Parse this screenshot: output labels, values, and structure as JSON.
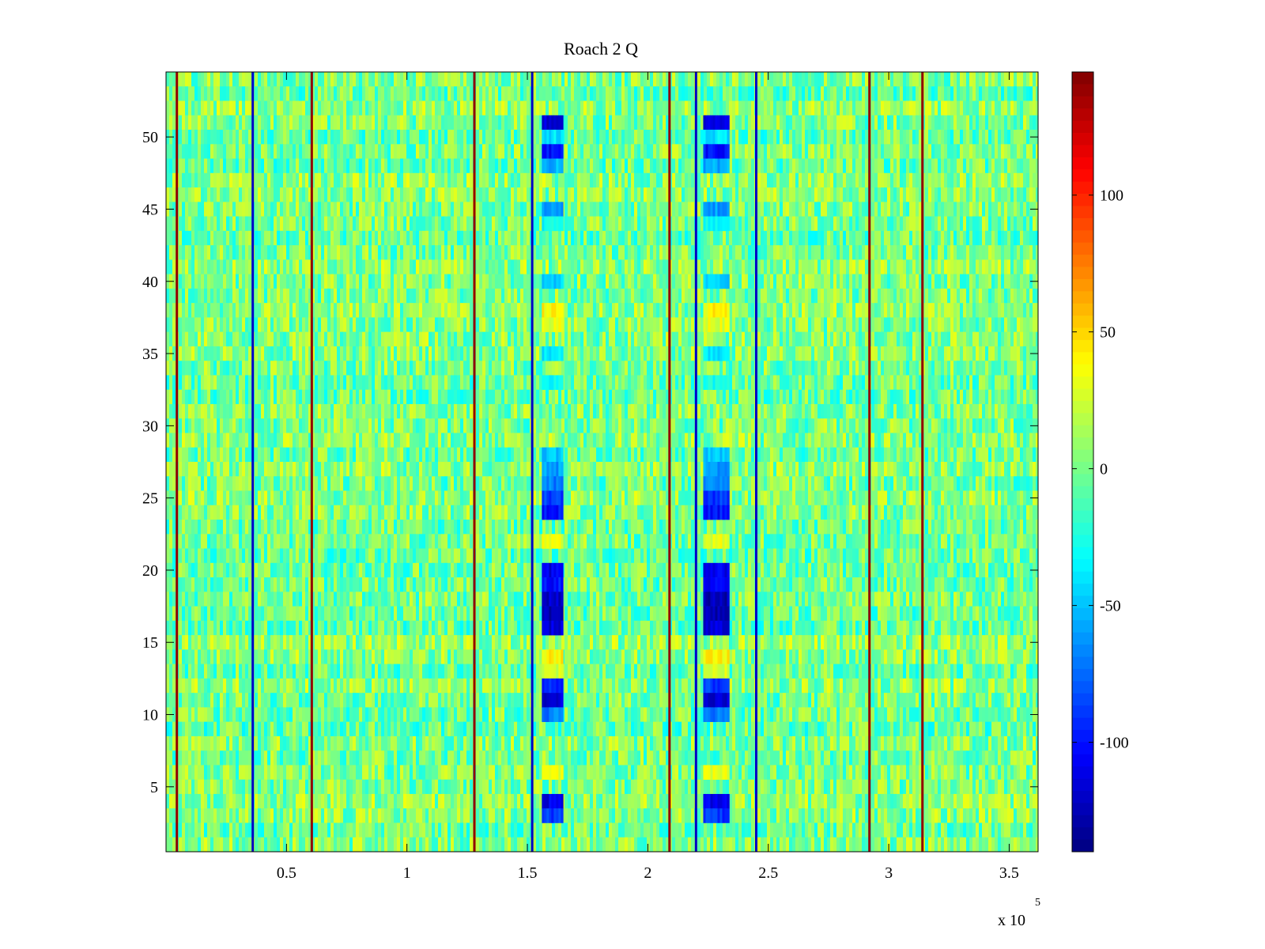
{
  "chart_data": {
    "type": "heatmap",
    "title": "Roach 2 Q",
    "xlabel": "",
    "ylabel": "",
    "x_multiplier_label": {
      "base": "x 10",
      "exponent": "5"
    },
    "xlim": [
      0.0,
      3.62
    ],
    "ylim": [
      0.5,
      54.5
    ],
    "x_ticks": [
      0.5,
      1,
      1.5,
      2,
      2.5,
      3,
      3.5
    ],
    "x_tick_labels": [
      "0.5",
      "1",
      "1.5",
      "2",
      "2.5",
      "3",
      "3.5"
    ],
    "y_ticks": [
      5,
      10,
      15,
      20,
      25,
      30,
      35,
      40,
      45,
      50
    ],
    "y_tick_labels": [
      "5",
      "10",
      "15",
      "20",
      "25",
      "30",
      "35",
      "40",
      "45",
      "50"
    ],
    "rows": 54,
    "colormap": "jet",
    "colorbar": {
      "clim": [
        -140,
        145
      ],
      "ticks": [
        -100,
        -50,
        0,
        50,
        100
      ],
      "tick_labels": [
        "-100",
        "-50",
        "0",
        "50",
        "100"
      ]
    },
    "background_level": 0,
    "vertical_lines": [
      {
        "x": 0.045,
        "value": 140
      },
      {
        "x": 0.36,
        "value": -120
      },
      {
        "x": 0.605,
        "value": 140
      },
      {
        "x": 1.28,
        "value": 140
      },
      {
        "x": 1.52,
        "value": -120
      },
      {
        "x": 2.09,
        "value": 140
      },
      {
        "x": 2.2,
        "value": -120
      },
      {
        "x": 2.45,
        "value": -120
      },
      {
        "x": 2.92,
        "value": 140
      },
      {
        "x": 3.14,
        "value": 140
      }
    ],
    "bands": [
      {
        "x_range": [
          1.56,
          1.64
        ],
        "rows": [
          {
            "y": 51,
            "value": -115
          },
          {
            "y": 50,
            "value": -40
          },
          {
            "y": 49,
            "value": -100
          },
          {
            "y": 48,
            "value": -55
          },
          {
            "y": 45,
            "value": -60
          },
          {
            "y": 44,
            "value": -30
          },
          {
            "y": 40,
            "value": -45
          },
          {
            "y": 38,
            "value": 40
          },
          {
            "y": 37,
            "value": 30
          },
          {
            "y": 35,
            "value": -40
          },
          {
            "y": 33,
            "value": -30
          },
          {
            "y": 28,
            "value": -50
          },
          {
            "y": 27,
            "value": -60
          },
          {
            "y": 26,
            "value": -70
          },
          {
            "y": 25,
            "value": -85
          },
          {
            "y": 24,
            "value": -100
          },
          {
            "y": 22,
            "value": 30
          },
          {
            "y": 20,
            "value": -110
          },
          {
            "y": 19,
            "value": -100
          },
          {
            "y": 18,
            "value": -120
          },
          {
            "y": 17,
            "value": -125
          },
          {
            "y": 16,
            "value": -115
          },
          {
            "y": 14,
            "value": 40
          },
          {
            "y": 13,
            "value": 25
          },
          {
            "y": 12,
            "value": -90
          },
          {
            "y": 11,
            "value": -115
          },
          {
            "y": 10,
            "value": -70
          },
          {
            "y": 6,
            "value": 30
          },
          {
            "y": 4,
            "value": -110
          },
          {
            "y": 3,
            "value": -90
          }
        ]
      },
      {
        "x_range": [
          2.23,
          2.33
        ],
        "rows": [
          {
            "y": 51,
            "value": -115
          },
          {
            "y": 50,
            "value": -40
          },
          {
            "y": 49,
            "value": -100
          },
          {
            "y": 48,
            "value": -55
          },
          {
            "y": 45,
            "value": -60
          },
          {
            "y": 44,
            "value": -30
          },
          {
            "y": 40,
            "value": -45
          },
          {
            "y": 38,
            "value": 40
          },
          {
            "y": 37,
            "value": 30
          },
          {
            "y": 35,
            "value": -40
          },
          {
            "y": 33,
            "value": -30
          },
          {
            "y": 28,
            "value": -50
          },
          {
            "y": 27,
            "value": -60
          },
          {
            "y": 26,
            "value": -70
          },
          {
            "y": 25,
            "value": -90
          },
          {
            "y": 24,
            "value": -100
          },
          {
            "y": 22,
            "value": 30
          },
          {
            "y": 20,
            "value": -110
          },
          {
            "y": 19,
            "value": -105
          },
          {
            "y": 18,
            "value": -125
          },
          {
            "y": 17,
            "value": -125
          },
          {
            "y": 16,
            "value": -115
          },
          {
            "y": 14,
            "value": 40
          },
          {
            "y": 13,
            "value": 25
          },
          {
            "y": 12,
            "value": -90
          },
          {
            "y": 11,
            "value": -115
          },
          {
            "y": 10,
            "value": -70
          },
          {
            "y": 6,
            "value": 30
          },
          {
            "y": 4,
            "value": -110
          },
          {
            "y": 3,
            "value": -90
          }
        ]
      }
    ]
  }
}
